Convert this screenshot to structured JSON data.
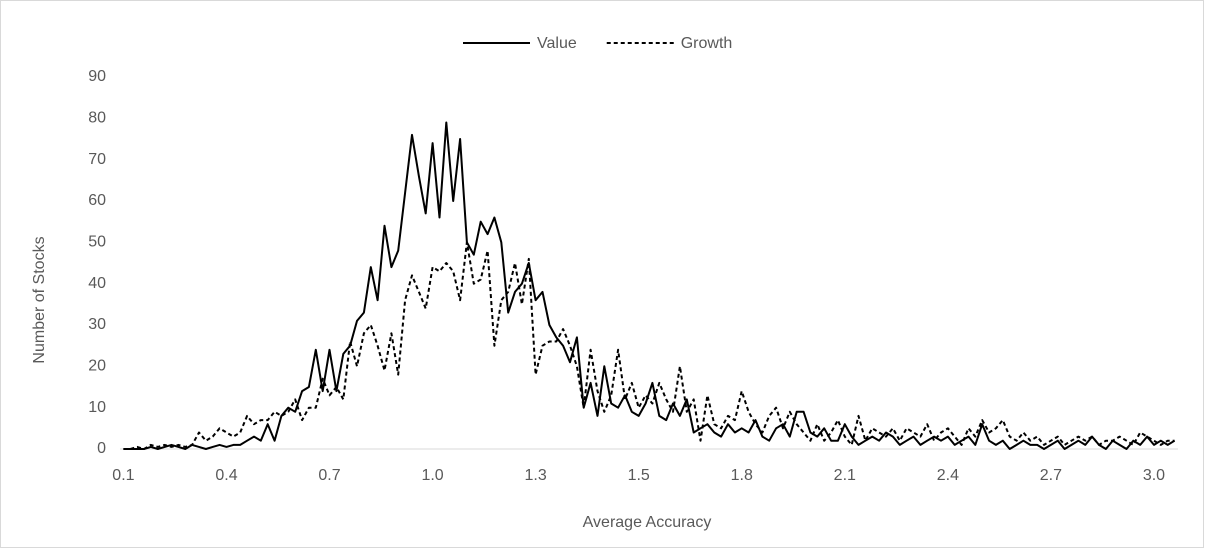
{
  "chart_data": {
    "type": "line",
    "x_label": "Average Accuracy",
    "y_label": "Number of Stocks",
    "legend": "top",
    "ylim": [
      0,
      90
    ],
    "yticks": [
      0,
      10,
      20,
      30,
      40,
      50,
      60,
      70,
      80,
      90
    ],
    "categories": [
      "0.1",
      null,
      null,
      null,
      null,
      null,
      null,
      null,
      null,
      null,
      null,
      null,
      null,
      null,
      null,
      "0.4",
      null,
      null,
      null,
      null,
      null,
      null,
      null,
      null,
      null,
      null,
      null,
      null,
      null,
      null,
      "0.7",
      null,
      null,
      null,
      null,
      null,
      null,
      null,
      null,
      null,
      null,
      null,
      null,
      null,
      null,
      "1.0",
      null,
      null,
      null,
      null,
      null,
      null,
      null,
      null,
      null,
      null,
      null,
      null,
      null,
      null,
      "1.3",
      null,
      null,
      null,
      null,
      null,
      null,
      null,
      null,
      null,
      null,
      null,
      null,
      null,
      null,
      "1.5",
      null,
      null,
      null,
      null,
      null,
      null,
      null,
      null,
      null,
      null,
      null,
      null,
      null,
      null,
      "1.8",
      null,
      null,
      null,
      null,
      null,
      null,
      null,
      null,
      null,
      null,
      null,
      null,
      null,
      null,
      "2.1",
      null,
      null,
      null,
      null,
      null,
      null,
      null,
      null,
      null,
      null,
      null,
      null,
      null,
      null,
      "2.4",
      null,
      null,
      null,
      null,
      null,
      null,
      null,
      null,
      null,
      null,
      null,
      null,
      null,
      null,
      "2.7",
      null,
      null,
      null,
      null,
      null,
      null,
      null,
      null,
      null,
      null,
      null,
      null,
      null,
      null,
      "3.0",
      null,
      null,
      null
    ],
    "series": [
      {
        "name": "Value",
        "color": "#000000",
        "line_style": "solid",
        "values": [
          0,
          0,
          0,
          0,
          0.5,
          0,
          0.5,
          1,
          0.5,
          0,
          1,
          0.5,
          0,
          0.5,
          1,
          0.5,
          1,
          1,
          2,
          3,
          2,
          6,
          2,
          8,
          10,
          9,
          14,
          15,
          24,
          14,
          24,
          14,
          23,
          25,
          31,
          33,
          44,
          36,
          54,
          44,
          48,
          62,
          76,
          66,
          57,
          74,
          56,
          79,
          60,
          75,
          50,
          47,
          55,
          52,
          56,
          50,
          33,
          38,
          40,
          45,
          36,
          38,
          30,
          27,
          25,
          21,
          27,
          10,
          16,
          8,
          20,
          11,
          10,
          13,
          9,
          8,
          11,
          16,
          8,
          7,
          11,
          8,
          12,
          4,
          5,
          6,
          4,
          3,
          6,
          4,
          5,
          4,
          7,
          3,
          2,
          5,
          6,
          3,
          9,
          9,
          4,
          3,
          5,
          2,
          2,
          6,
          3,
          1,
          2,
          3,
          2,
          4,
          3,
          1,
          2,
          3,
          1,
          2,
          3,
          2,
          3,
          1,
          2,
          3,
          1,
          6,
          2,
          1,
          2,
          0,
          1,
          2,
          1,
          1,
          0,
          1,
          2,
          0,
          1,
          2,
          1,
          3,
          1,
          0,
          2,
          1,
          0,
          2,
          1,
          3,
          1,
          2,
          1,
          2
        ]
      },
      {
        "name": "Growth",
        "color": "#000000",
        "line_style": "dashed",
        "values": [
          0,
          0,
          0.5,
          0,
          1,
          0.5,
          1,
          0.5,
          1,
          0.5,
          1,
          4,
          2,
          3,
          5,
          4,
          3,
          4,
          8,
          6,
          7,
          7,
          9,
          8,
          9,
          12,
          7,
          10,
          10,
          17,
          13,
          15,
          12,
          26,
          20,
          28,
          30,
          25,
          19,
          28,
          18,
          36,
          42,
          38,
          34,
          44,
          43,
          45,
          43,
          36,
          50,
          40,
          41,
          48,
          25,
          36,
          38,
          45,
          35,
          46,
          18,
          25,
          26,
          26,
          29,
          25,
          20,
          10,
          24,
          14,
          9,
          13,
          24,
          12,
          16,
          10,
          13,
          11,
          16,
          12,
          9,
          20,
          9,
          12,
          2,
          13,
          6,
          5,
          8,
          7,
          14,
          9,
          6,
          4,
          8,
          10,
          5,
          9,
          6,
          4,
          2,
          6,
          2,
          4,
          7,
          3,
          1,
          8,
          2,
          5,
          4,
          3,
          5,
          2,
          5,
          4,
          3,
          6,
          2,
          4,
          5,
          3,
          1,
          5,
          3,
          7,
          4,
          5,
          7,
          3,
          2,
          4,
          2,
          3,
          1,
          2,
          3,
          1,
          2,
          3,
          2,
          3,
          1,
          2,
          2,
          3,
          2,
          1,
          4,
          3,
          2,
          1,
          2,
          2
        ]
      }
    ]
  }
}
